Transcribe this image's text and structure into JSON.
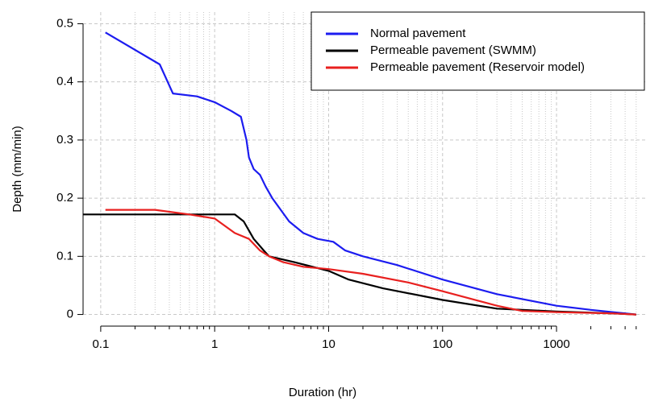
{
  "chart_data": {
    "type": "line",
    "x_label": "Duration (hr)",
    "y_label": "Depth (mm/min)",
    "xscale": "log",
    "xlim": [
      0.07,
      6000
    ],
    "ylim": [
      -0.02,
      0.52
    ],
    "xticks": [
      0.1,
      1,
      10,
      100,
      1000
    ],
    "xminorticks": [
      0.2,
      0.3,
      0.4,
      0.5,
      0.6,
      0.7,
      0.8,
      0.9,
      2,
      3,
      4,
      5,
      6,
      7,
      8,
      9,
      20,
      30,
      40,
      50,
      60,
      70,
      80,
      90,
      200,
      300,
      400,
      500,
      600,
      700,
      800,
      900,
      2000,
      3000,
      4000,
      5000
    ],
    "yticks": [
      0,
      0.1,
      0.2,
      0.3,
      0.4,
      0.5
    ],
    "grid": true,
    "legend": "topright",
    "series": [
      {
        "name": "Normal pavement",
        "color": "#1c1cf0",
        "x": [
          0.11,
          0.33,
          0.43,
          0.7,
          1,
          1.4,
          1.7,
          1.9,
          2.0,
          2.2,
          2.5,
          2.8,
          3.2,
          3.8,
          4.5,
          6,
          8,
          11,
          14,
          20,
          40,
          100,
          300,
          1000,
          2000,
          5000
        ],
        "values": [
          0.485,
          0.43,
          0.38,
          0.375,
          0.365,
          0.35,
          0.34,
          0.3,
          0.27,
          0.25,
          0.24,
          0.22,
          0.2,
          0.18,
          0.16,
          0.14,
          0.13,
          0.125,
          0.11,
          0.1,
          0.085,
          0.06,
          0.035,
          0.015,
          0.008,
          0
        ]
      },
      {
        "name": "Permeable pavement (SWMM)",
        "color": "#000000",
        "x": [
          0.07,
          1.5,
          1.8,
          2.2,
          2.7,
          3,
          5,
          10,
          15,
          30,
          100,
          300,
          1000,
          3000,
          5000
        ],
        "values": [
          0.172,
          0.172,
          0.16,
          0.13,
          0.11,
          0.1,
          0.09,
          0.075,
          0.06,
          0.045,
          0.025,
          0.01,
          0.005,
          0.002,
          0
        ]
      },
      {
        "name": "Permeable pavement (Reservoir model)",
        "color": "#e8201f",
        "x": [
          0.11,
          0.3,
          0.6,
          1,
          1.5,
          2,
          2.5,
          3,
          4,
          6,
          10,
          20,
          50,
          100,
          300,
          500,
          1000,
          3000,
          5000
        ],
        "values": [
          0.18,
          0.18,
          0.172,
          0.165,
          0.14,
          0.13,
          0.11,
          0.1,
          0.09,
          0.082,
          0.078,
          0.07,
          0.055,
          0.04,
          0.015,
          0.006,
          0.004,
          0.002,
          0
        ]
      }
    ]
  }
}
